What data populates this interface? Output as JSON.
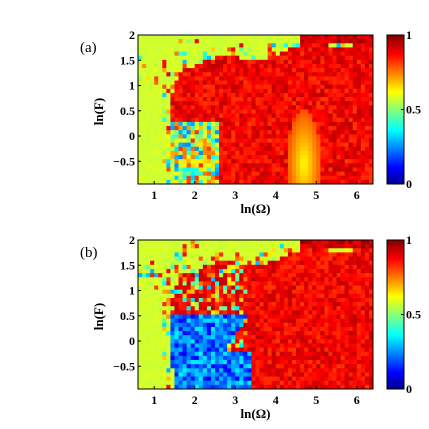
{
  "chart_data": [
    {
      "type": "heatmap",
      "panel_label": "(a)",
      "xlabel": "ln(Ω)",
      "ylabel": "ln(F)",
      "xlim": [
        0.6,
        6.4
      ],
      "ylim": [
        -0.95,
        2.0
      ],
      "x_ticks": [
        1,
        2,
        3,
        4,
        5,
        6
      ],
      "x_tick_labels": [
        "1",
        "2",
        "3",
        "4",
        "5",
        "6"
      ],
      "y_ticks": [
        -0.5,
        0,
        0.5,
        1,
        1.5,
        2
      ],
      "y_tick_labels": [
        "−0.5",
        "0",
        "0.5",
        "1",
        "1.5",
        "2"
      ],
      "colorbar": {
        "range": [
          0,
          1
        ],
        "ticks": [
          0,
          0.5,
          1
        ],
        "tick_labels": [
          "0",
          "0.5",
          "1"
        ],
        "colormap": "jet"
      },
      "grid": false
    },
    {
      "type": "heatmap",
      "panel_label": "(b)",
      "xlabel": "ln(Ω)",
      "ylabel": "ln(F)",
      "xlim": [
        0.6,
        6.4
      ],
      "ylim": [
        -0.95,
        2.0
      ],
      "x_ticks": [
        1,
        2,
        3,
        4,
        5,
        6
      ],
      "x_tick_labels": [
        "1",
        "2",
        "3",
        "4",
        "5",
        "6"
      ],
      "y_ticks": [
        -0.5,
        0,
        0.5,
        1,
        1.5,
        2
      ],
      "y_tick_labels": [
        "−0.5",
        "0",
        "0.5",
        "1",
        "1.5",
        "2"
      ],
      "colorbar": {
        "range": [
          0,
          1
        ],
        "ticks": [
          0,
          0.5,
          1
        ],
        "tick_labels": [
          "0",
          "0.5",
          "1"
        ],
        "colormap": "jet"
      },
      "grid": false
    }
  ]
}
